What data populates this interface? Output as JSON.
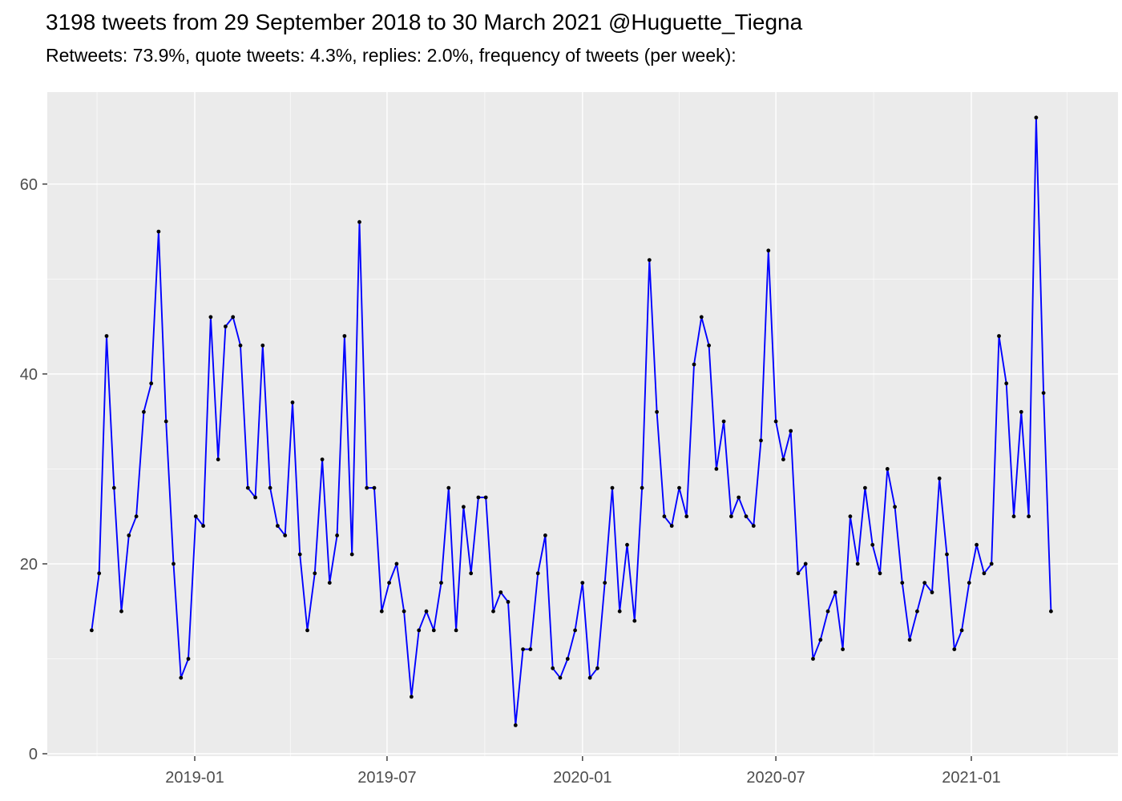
{
  "header": {
    "title": "3198 tweets from 29 September 2018 to 30 March 2021 @Huguette_Tiegna",
    "subtitle": "Retweets: 73.9%, quote tweets: 4.3%, replies: 2.0%, frequency of tweets (per week):"
  },
  "chart_data": {
    "type": "line",
    "title": "3198 tweets from 29 September 2018 to 30 March 2021 @Huguette_Tiegna",
    "subtitle": "Retweets: 73.9%, quote tweets: 4.3%, replies: 2.0%, frequency of tweets (per week):",
    "xlabel": "",
    "ylabel": "",
    "legend_position": "none",
    "grid": true,
    "point_markers": true,
    "x_start_date": "2018-09-26",
    "x_interval_days": 7,
    "values": [
      13,
      19,
      44,
      28,
      15,
      23,
      25,
      36,
      39,
      55,
      35,
      20,
      8,
      10,
      25,
      24,
      46,
      31,
      45,
      46,
      43,
      28,
      27,
      43,
      28,
      24,
      23,
      37,
      21,
      13,
      19,
      31,
      18,
      23,
      44,
      21,
      56,
      28,
      28,
      15,
      18,
      20,
      15,
      6,
      13,
      15,
      13,
      18,
      28,
      13,
      26,
      19,
      27,
      27,
      15,
      17,
      16,
      3,
      11,
      11,
      19,
      23,
      9,
      8,
      10,
      13,
      18,
      8,
      9,
      18,
      28,
      15,
      22,
      14,
      28,
      52,
      36,
      25,
      24,
      28,
      25,
      41,
      46,
      43,
      30,
      35,
      25,
      27,
      25,
      24,
      33,
      53,
      35,
      31,
      34,
      19,
      20,
      10,
      12,
      15,
      17,
      11,
      25,
      20,
      28,
      22,
      19,
      30,
      26,
      18,
      12,
      15,
      18,
      17,
      29,
      21,
      11,
      13,
      18,
      22,
      19,
      20,
      44,
      39,
      25,
      36,
      25,
      67,
      38,
      15
    ],
    "x_major_ticks": [
      {
        "date": "2019-01-01",
        "label": "2019-01"
      },
      {
        "date": "2019-07-01",
        "label": "2019-07"
      },
      {
        "date": "2020-01-01",
        "label": "2020-01"
      },
      {
        "date": "2020-07-01",
        "label": "2020-07"
      },
      {
        "date": "2021-01-01",
        "label": "2021-01"
      }
    ],
    "x_minor_tick_dates": [
      "2018-10-01",
      "2019-04-01",
      "2019-10-01",
      "2020-04-01",
      "2020-10-01",
      "2021-04-01"
    ],
    "y_major_ticks": [
      {
        "value": 0,
        "label": "0"
      },
      {
        "value": 20,
        "label": "20"
      },
      {
        "value": 40,
        "label": "40"
      },
      {
        "value": 60,
        "label": "60"
      }
    ],
    "y_minor_tick_values": [
      10,
      30,
      50
    ],
    "ylim": [
      0,
      70
    ],
    "colors": {
      "line": "#0000FF",
      "point": "#000000",
      "panel_bg": "#EBEBEB",
      "grid_major": "#FFFFFF",
      "grid_minor": "#FFFFFF",
      "axis_text": "#4D4D4D",
      "tick_mark": "#333333",
      "title_text": "#000000",
      "page_bg": "#FFFFFF"
    }
  }
}
